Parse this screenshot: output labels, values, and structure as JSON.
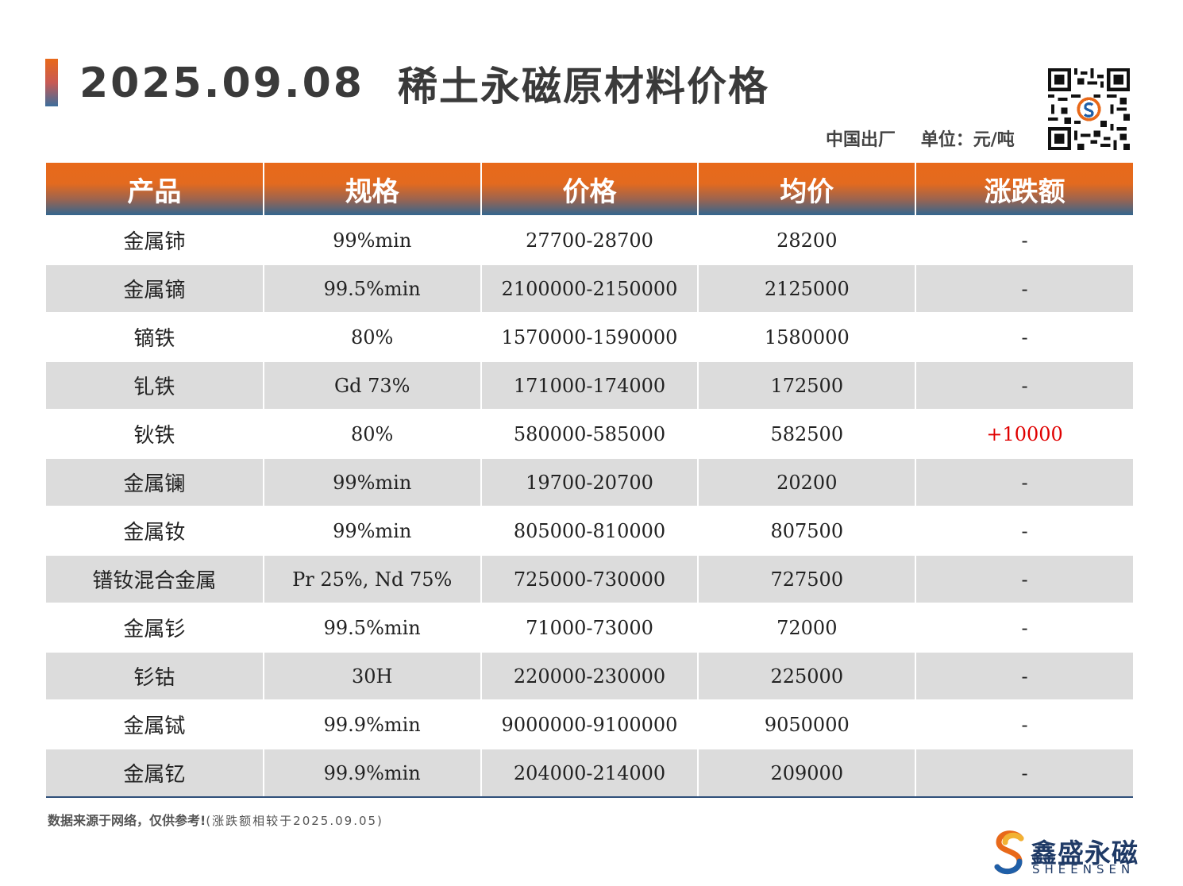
{
  "header": {
    "date": "2025.09.08",
    "title": "稀土永磁原材料价格",
    "origin": "中国出厂",
    "unit": "单位：元/吨"
  },
  "table": {
    "columns": [
      "产品",
      "规格",
      "价格",
      "均价",
      "涨跌额"
    ],
    "rows": [
      {
        "product": "金属铈",
        "spec": "99%min",
        "price": "27700-28700",
        "avg": "28200",
        "change": "-"
      },
      {
        "product": "金属镝",
        "spec": "99.5%min",
        "price": "2100000-2150000",
        "avg": "2125000",
        "change": "-"
      },
      {
        "product": "镝铁",
        "spec": "80%",
        "price": "1570000-1590000",
        "avg": "1580000",
        "change": "-"
      },
      {
        "product": "钆铁",
        "spec": "Gd 73%",
        "price": "171000-174000",
        "avg": "172500",
        "change": "-"
      },
      {
        "product": "钬铁",
        "spec": "80%",
        "price": "580000-585000",
        "avg": "582500",
        "change": "+10000"
      },
      {
        "product": "金属镧",
        "spec": "99%min",
        "price": "19700-20700",
        "avg": "20200",
        "change": "-"
      },
      {
        "product": "金属钕",
        "spec": "99%min",
        "price": "805000-810000",
        "avg": "807500",
        "change": "-"
      },
      {
        "product": "镨钕混合金属",
        "spec": "Pr 25%, Nd 75%",
        "price": "725000-730000",
        "avg": "727500",
        "change": "-"
      },
      {
        "product": "金属钐",
        "spec": "99.5%min",
        "price": "71000-73000",
        "avg": "72000",
        "change": "-"
      },
      {
        "product": "钐钴",
        "spec": "30H",
        "price": "220000-230000",
        "avg": "225000",
        "change": "-"
      },
      {
        "product": "金属铽",
        "spec": "99.9%min",
        "price": "9000000-9100000",
        "avg": "9050000",
        "change": "-"
      },
      {
        "product": "金属钇",
        "spec": "99.9%min",
        "price": "204000-214000",
        "avg": "209000",
        "change": "-"
      }
    ]
  },
  "footer": {
    "note": "数据来源于网络，仅供参考!",
    "compare_note": "(涨跌额相较于2025.09.05)"
  },
  "logo": {
    "name_cn": "鑫盛永磁",
    "name_en": "SHEENSEN"
  },
  "colors": {
    "header_orange": "#e8691a",
    "header_blue": "#33668f",
    "row_alt": "#dcdcdc",
    "up_red": "#e00000",
    "brand_blue": "#1f3a66"
  }
}
